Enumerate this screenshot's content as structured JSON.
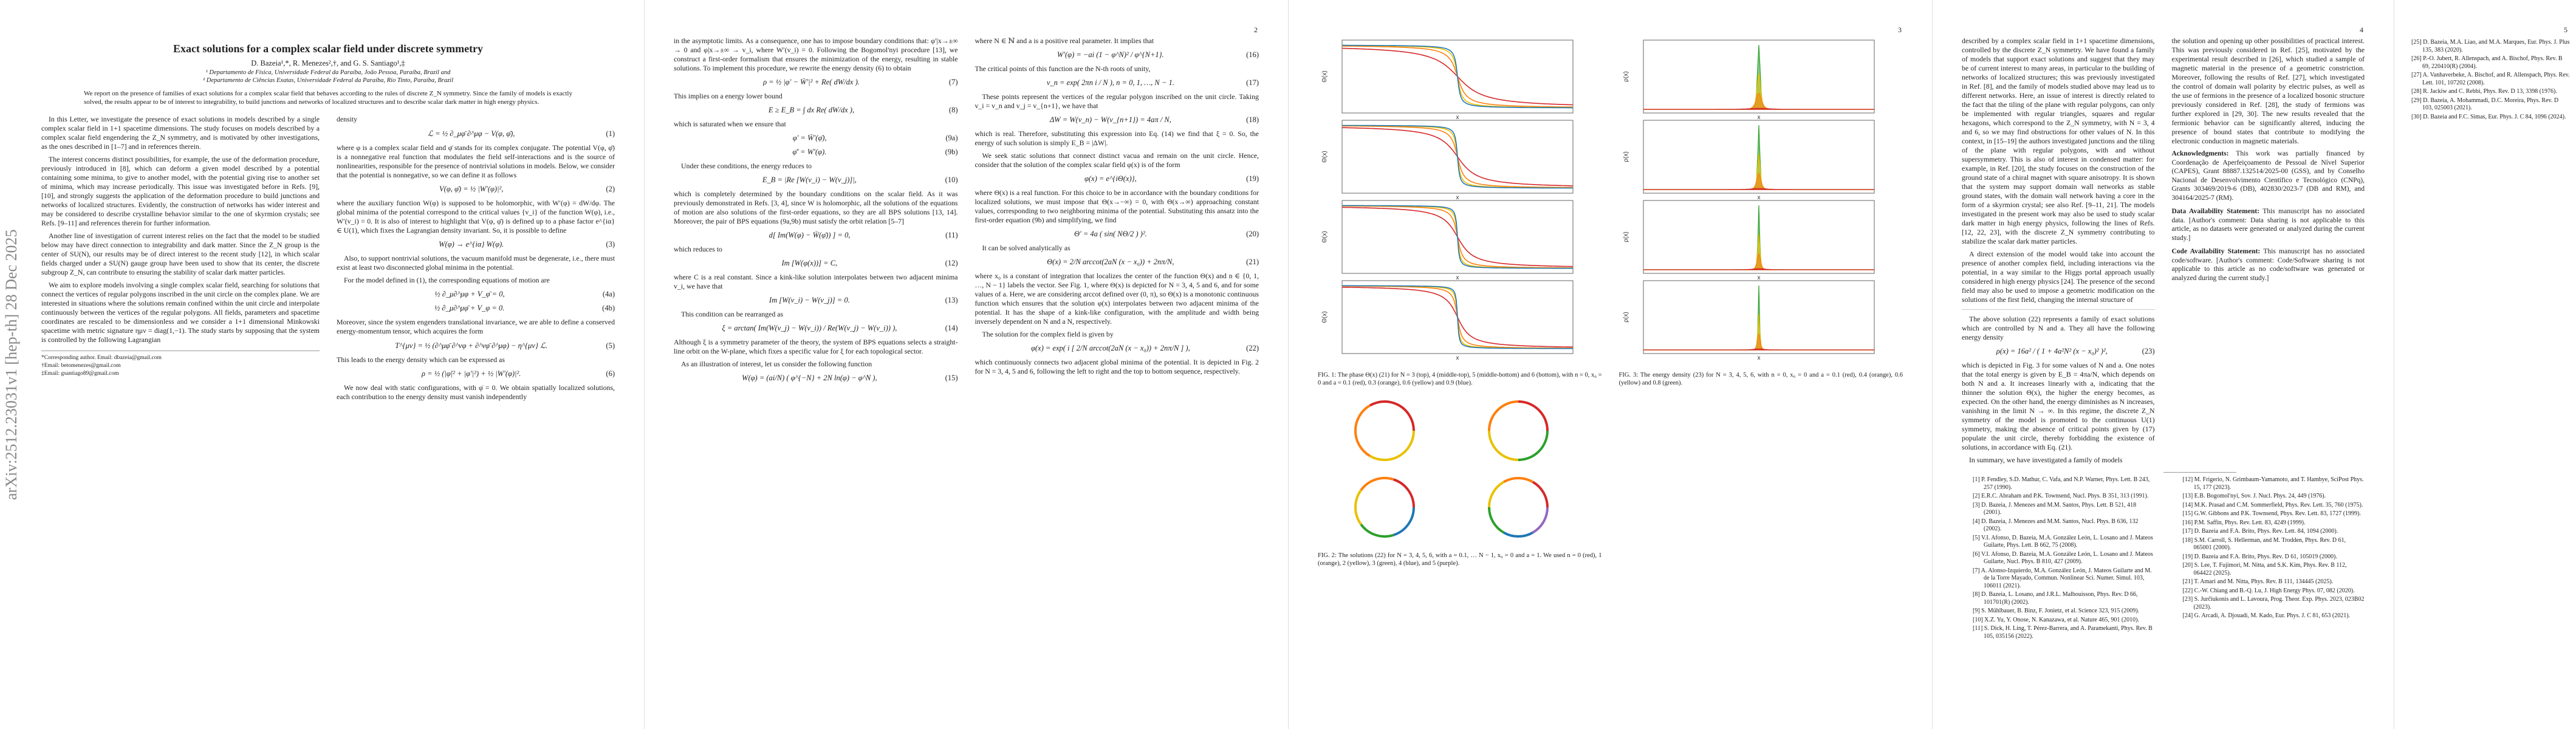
{
  "arxiv_id": "arXiv:2512.23031v1  [hep-th]  28 Dec 2025",
  "page1": {
    "title": "Exact solutions for a complex scalar field under discrete symmetry",
    "authors": "D. Bazeia¹,*, R. Menezes²,†, and G. S. Santiago¹,‡",
    "affil1": "¹ Departamento de Física, Universidade Federal da Paraíba, João Pessoa, Paraíba, Brazil and",
    "affil2": "² Departamento de Ciências Exatas, Universidade Federal da Paraíba, Rio Tinto, Paraíba, Brazil",
    "abstract": "We report on the presence of families of exact solutions for a complex scalar field that behaves according to the rules of discrete Z_N symmetry. Since the family of models is exactly solved, the results appear to be of interest to integrability, to build junctions and networks of localized structures and to describe scalar dark matter in high energy physics.",
    "left_paragraphs": [
      "In this Letter, we investigate the presence of exact solutions in models described by a single complex scalar field in 1+1 spacetime dimensions. The study focuses on models described by a complex scalar field engendering the Z_N symmetry, and is motivated by other investigations, as the ones described in [1–7] and in references therein.",
      "The interest concerns distinct possibilities, for example, the use of the deformation procedure, previously introduced in [8], which can deform a given model described by a potential containing some minima, to give to another model, with the potential giving rise to another set of minima, which may increase periodically. This issue was investigated before in Refs. [9], [10], and strongly suggests the application of the deformation procedure to build junctions and networks of localized structures. Evidently, the construction of networks has wider interest and may be considered to describe crystalline behavior similar to the one of skyrmion crystals; see Refs. [9–11] and references therein for further information.",
      "Another line of investigation of current interest relies on the fact that the model to be studied below may have direct connection to integrability and dark matter. Since the Z_N group is the center of SU(N), our results may be of direct interest to the recent study [12], in which scalar fields charged under a SU(N) gauge group have been used to show that its center, the discrete subgroup Z_N, can contribute to ensuring the stability of scalar dark matter particles.",
      "We aim to explore models involving a single complex scalar field, searching for solutions that connect the vertices of regular polygons inscribed in the unit circle on the complex plane. We are interested in situations where the solutions remain confined within the unit circle and interpolate continuously between the vertices of the regular polygons. All fields, parameters and spacetime coordinates are rescaled to be dimensionless and we consider a 1+1 dimensional Minkowski spacetime with metric signature ημν = diag(1,−1). The study starts by supposing that the system is controlled by the following Lagrangian"
    ],
    "footnotes": [
      "*Corresponding author. Email: dbazeia@gmail.com",
      "†Email: betomenezes@gmail.com",
      "‡Email: gsantiago89@gmail.com"
    ],
    "right_top": "density",
    "eq1": "ℒ = ½ ∂_μφ̄ ∂^μφ − V(φ, φ̄),",
    "right_paragraphs_a": [
      "where φ is a complex scalar field and φ̄ stands for its complex conjugate. The potential V(φ, φ̄) is a nonnegative real function that modulates the field self-interactions and is the source of nonlinearities, responsible for the presence of nontrivial solutions in models. Below, we consider that the potential is nonnegative, so we can define it as follows"
    ],
    "eq2": "V(φ, φ̄) = ½ |W′(φ)|²,",
    "right_paragraphs_b": [
      "where the auxiliary function W(φ) is supposed to be holomorphic, with W′(φ) = dW/dφ. The global minima of the potential correspond to the critical values {v_i} of the function W(φ), i.e., W′(v_i) = 0. It is also of interest to highlight that V(φ, φ̄) is defined up to a phase factor e^{iα} ∈ U(1), which fixes the Lagrangian density invariant. So, it is possible to define"
    ],
    "eq3": "W(φ) → e^{iα} W(φ).",
    "right_paragraphs_c": [
      "Also, to support nontrivial solutions, the vacuum manifold must be degenerate, i.e., there must exist at least two disconnected global minima in the potential.",
      "For the model defined in (1), the corresponding equations of motion are"
    ],
    "eq4a": "½ ∂_μ∂^μφ + V_φ̄ = 0,",
    "eq4b": "½ ∂_μ∂^μφ̄ + V_φ = 0.",
    "right_paragraphs_d": [
      "Moreover, since the system engenders translational invariance, we are able to define a conserved energy-momentum tensor, which acquires the form"
    ],
    "eq5": "T^{μν} = ½ (∂^μφ̄ ∂^νφ + ∂^νφ̄ ∂^μφ) − η^{μν} ℒ.",
    "right_paragraphs_e": [
      "This leads to the energy density which can be expressed as"
    ],
    "eq6": "ρ = ½ (|φ̇|² + |φ′|²) + ½ |W′(φ)|².",
    "right_paragraphs_f": [
      "We now deal with static configurations, with φ̇ = 0. We obtain spatially localized solutions, each contribution to the energy density must vanish independently"
    ]
  },
  "page2": {
    "page_number": "2",
    "left_paragraphs_a": [
      "in the asymptotic limits. As a consequence, one has to impose boundary conditions that: φ′|x→±∞ → 0 and φ|x→±∞ → v_i, where W′(v_i) = 0. Following the Bogomol'nyi procedure [13], we construct a first-order formalism that ensures the minimization of the energy, resulting in stable solutions. To implement this procedure, we rewrite the energy density (6) to obtain"
    ],
    "eq7": "ρ = ½ |φ′ − W̄′|² + Re( dW/dx ).",
    "left_paragraphs_b": [
      "This implies on a energy lower bound"
    ],
    "eq8": "E ≥ E_B = ∫ dx Re( dW/dx ),",
    "left_paragraphs_c": [
      "which is saturated when we ensure that"
    ],
    "eq9a": "φ′ = W̄′(φ̄),",
    "eq9b": "φ̄′ = W′(φ).",
    "left_paragraphs_d": [
      "Under these conditions, the energy reduces to"
    ],
    "eq10": "E_B = |Re [W(v_i) − W(v_j)]|,",
    "left_paragraphs_e": [
      "which is completely determined by the boundary conditions on the scalar field. As it was previously demonstrated in Refs. [3, 4], since W is holomorphic, all the solutions of the equations of motion are also solutions of the first-order equations, so they are all BPS solutions [13, 14]. Moreover, the pair of BPS equations (9a,9b) must satisfy the orbit relation [5–7]"
    ],
    "eq11": "d[ Im(W(φ) − W̄(φ̄)) ] = 0,",
    "left_paragraphs_f": [
      "which reduces to"
    ],
    "eq12": "Im [W(φ(x))] = C,",
    "left_paragraphs_g": [
      "where C is a real constant. Since a kink-like solution interpolates between two adjacent minima v_i, we have that"
    ],
    "eq13": "Im [W(v_i) − W(v_j)] = 0.",
    "left_paragraphs_h": [
      "This condition can be rearranged as"
    ],
    "eq14": "ξ = arctan( Im(W(v_j) − W(v_i)) / Re(W(v_j) − W(v_i)) ),",
    "left_paragraphs_i": [
      "Although ξ is a symmetry parameter of the theory, the system of BPS equations selects a straight-line orbit on the W-plane, which fixes a specific value for ξ for each topological sector.",
      "As an illustration of interest, let us consider the following function"
    ],
    "eq15": "W(φ) = (ai/N) ( φ^{−N} + 2N ln(φ) − φ^N ),",
    "right_paragraphs_a": [
      "where N ∈ ℕ and a is a positive real parameter. It implies that"
    ],
    "eq16": "W′(φ) = −ai (1 − φ^N)² / φ^{N+1}.",
    "right_paragraphs_b": [
      "The critical points of this function are the N-th roots of unity,"
    ],
    "eq17": "v_n = exp( 2πn i / N ),    n = 0, 1, …, N − 1.",
    "right_paragraphs_c": [
      "These points represent the vertices of the regular polygon inscribed on the unit circle. Taking v_i = v_n and v_j = v_{n+1}, we have that"
    ],
    "eq18": "ΔW = W(v_n) − W(v_{n+1}) = 4aπ / N,",
    "right_paragraphs_d": [
      "which is real. Therefore, substituting this expression into Eq. (14) we find that ξ = 0. So, the energy of such solution is simply E_B = |ΔW|.",
      "We seek static solutions that connect distinct vacua and remain on the unit circle. Hence, consider that the solution of the complex scalar field φ(x) is of the form"
    ],
    "eq19": "φ(x) = e^{iΘ(x)},",
    "right_paragraphs_e": [
      "where Θ(x) is a real function. For this choice to be in accordance with the boundary conditions for localized solutions, we must impose that Θ(x→−∞) = 0, with Θ(x→∞) approaching constant values, corresponding to two neighboring minima of the potential. Substituting this ansatz into the first-order equation (9b) and simplifying, we find"
    ],
    "eq20": "Θ′ = 4a ( sin( NΘ/2 ) )².",
    "right_paragraphs_f": [
      "It can be solved analytically as"
    ],
    "eq21": "Θ(x) = 2/N arccot(2aN (x − x₀)) + 2nπ/N,",
    "right_paragraphs_g": [
      "where x₀ is a constant of integration that localizes the center of the function Θ(x) and n ∈ {0, 1, …, N − 1} labels the vector. See Fig. 1, where Θ(x) is depicted for N = 3, 4, 5 and 6, and for some values of a. Here, we are considering arccot defined over (0, π), so Θ(x) is a monotonic continuous function which ensures that the solution φ(x) interpolates between two adjacent minima of the potential. It has the shape of a kink-like configuration, with the amplitude and width being inversely dependent on N and a N, respectively.",
      "The solution for the complex field is given by"
    ],
    "eq22": "φ(x) = exp( i [ 2/N arccot(2aN (x − x₀)) + 2nπ/N ] ),",
    "right_paragraphs_h": [
      "which continuously connects two adjacent global minima of the potential. It is depicted in Fig. 2 for N = 3, 4, 5 and 6, following the left to right and the top to bottom sequence, respectively."
    ]
  },
  "page3": {
    "page_number": "3",
    "fig1_caption": "FIG. 1: The phase Θ(x) (21) for N = 3 (top), 4 (middle-top), 5 (middle-bottom) and 6 (bottom), with n = 0, x₀ = 0 and a = 0.1 (red), 0.3 (orange), 0.6 (yellow) and 0.9 (blue).",
    "fig2_caption": "FIG. 2: The solutions (22) for N = 3, 4, 5, 6, with a = 0.1, … N − 1, x₀ = 0 and a = 1. We used n = 0 (red), 1 (orange), 2 (yellow), 3 (green), 4 (blue), and 5 (purple).",
    "fig3_caption": "FIG. 3: The energy density (23) for N = 3, 4, 5, 6, with n = 0, x₀ = 0 and a = 0.1 (red), 0.4 (orange), 0.6 (yellow) and 0.8 (green).",
    "axis_x": "x",
    "axis_theta": "Θ(x)",
    "axis_rho": "ρ(x)"
  },
  "page4": {
    "page_number": "4",
    "left_paragraphs_a": [
      "described by a complex scalar field in 1+1 spacetime dimensions, controlled by the discrete Z_N symmetry. We have found a family of models that support exact solutions and suggest that they may be of current interest to many areas, in particular to the building of networks of localized structures; this was previously investigated in Ref. [8], and the family of models studied above may lead us to different networks. Here, an issue of interest is directly related to the fact that the tiling of the plane with regular polygons, can only be implemented with regular triangles, squares and regular hexagons, which correspond to the Z_N symmetry, with N = 3, 4 and 6, so we may find obstructions for other values of N. In this context, in [15–19] the authors investigated junctions and the tiling of the plane with regular polygons, with and without supersymmetry. This is also of interest in condensed matter: for example, in Ref. [20], the study focuses on the construction of the ground state of a chiral magnet with square anisotropy. It is shown that the system may support domain wall networks as stable ground states, with the domain wall network having a core in the form of a skyrmion crystal; see also Ref. [9–11, 21]. The models investigated in the present work may also be used to study scalar dark matter in high energy physics, following the lines of Refs. [12, 22, 23], with the discrete Z_N symmetry contributing to stabilize the scalar dark matter particles.",
      "A direct extension of the model would take into account the presence of another complex field, including interactions via the potential, in a way similar to the Higgs portal approach usually considered in high energy physics [24]. The presence of the second field may also be used to impose a geometric modification on the solutions of the first field, changing the internal structure of"
    ],
    "left_paragraphs_b": [
      "The above solution (22) represents a family of exact solutions which are controlled by N and a. They all have the following energy density"
    ],
    "eq23": "ρ(x) = 16a² / ( 1 + 4a²N² (x − x₀)² )²,",
    "left_paragraphs_c": [
      "which is depicted in Fig. 3 for some values of N and a. One notes that the total energy is given by E_B = 4πa/N, which depends on both N and a. It increases linearly with a, indicating that the thinner the solution Θ(x), the higher the energy becomes, as expected. On the other hand, the energy diminishes as N increases, vanishing in the limit N → ∞. In this regime, the discrete Z_N symmetry of the model is promoted to the continuous U(1) symmetry, making the absence of critical points given by (17) populate the unit circle, thereby forbidding the existence of solutions, in accordance with Eq. (21).",
      "In summary, we have investigated a family of models"
    ],
    "mid_paragraphs": [
      "the solution and opening up other possibilities of practical interest. This was previously considered in Ref. [25], motivated by the experimental result described in [26], which studied a sample of magnetic material in the presence of a geometric constriction. Moreover, following the results of Ref. [27], which investigated the control of domain wall polarity by electric pulses, as well as the use of fermions in the presence of a localized bosonic structure previously considered in Ref. [28], the study of fermions was further explored in [29, 30]. The new results revealed that the fermionic behavior can be significantly altered, inducing the presence of bound states that contribute to modifying the electronic conduction in magnetic materials."
    ],
    "ack_title": "Acknowledgments:",
    "ack_text": "This work was partially financed by Coordenação de Aperfeiçoamento de Pessoal de Nível Superior (CAPES), Grant 88887.132514/2025-00 (GSS), and by Conselho Nacional de Desenvolvimento Científico e Tecnológico (CNPq), Grants 303469/2019-6 (DB), 402830/2023-7 (DB and RM), and 304164/2025-7 (RM).",
    "data_title": "Data Availability Statement:",
    "data_text": "This manuscript has no associated data. [Author's comment: Data sharing is not applicable to this article, as no datasets were generated or analyzed during the current study.]",
    "code_title": "Code Availability Statement:",
    "code_text": "This manuscript has no associated code/software. [Author's comment: Code/Software sharing is not applicable to this article as no code/software was generated or analyzed during the current study.]",
    "refs_left": [
      "[1] P. Fendley, S.D. Mathur, C. Vafa, and N.P. Warner, Phys. Lett. B 243, 257 (1990).",
      "[2] E.R.C. Abraham and P.K. Townsend, Nucl. Phys. B 351, 313 (1991).",
      "[3] D. Bazeia, J. Menezes and M.M. Santos, Phys. Lett. B 521, 418 (2001).",
      "[4] D. Bazeia, J. Menezes and M.M. Santos, Nucl. Phys. B 636, 132 (2002).",
      "[5] V.I. Afonso, D. Bazeia, M.A. González León, L. Losano and J. Mateos Guilarte, Phys. Lett. B 662, 75 (2008).",
      "[6] V.I. Afonso, D. Bazeia, M.A. González León, L. Losano and J. Mateos Guilarte, Nucl. Phys. B 810, 427 (2009).",
      "[7] A. Alonso-Izquierdo, M.A. González León, J. Mateos Guilarte and M. de la Torre Mayado, Commun. Nonlinear Sci. Numer. Simul. 103, 106011 (2021).",
      "[8] D. Bazeia, L. Losano, and J.R.L. Malbouisson, Phys. Rev. D 66, 101701(R) (2002).",
      "[9] S. Mühlbauer, B. Binz, F. Jonietz, et al. Science 323, 915 (2009).",
      "[10] X.Z. Yu, Y. Onose, N. Kanazawa, et al. Nature 465, 901 (2010).",
      "[11] S. Dick, H. Ling, T. Pérez-Barrera, and A. Paramekanti, Phys. Rev. B 105, 035156 (2022)."
    ],
    "refs_right": [
      "[12] M. Frigerio, N. Grimbaum-Yamamoto, and T. Hambye, SciPost Phys. 15, 177 (2023).",
      "[13] E.B. Bogomol'nyi, Sov. J. Nucl. Phys. 24, 449 (1976).",
      "[14] M.K. Prasad and C.M. Sommerfield, Phys. Rev. Lett. 35, 760 (1975).",
      "[15] G.W. Gibbons and P.K. Townsend, Phys. Rev. Lett. 83, 1727 (1999).",
      "[16] P.M. Saffin, Phys. Rev. Lett. 83, 4249 (1999).",
      "[17] D. Bazeia and F.A. Brito, Phys. Rev. Lett. 84, 1094 (2000).",
      "[18] S.M. Carroll, S. Hellerman, and M. Trodden, Phys. Rev. D 61, 065001 (2000).",
      "[19] D. Bazeia and F.A. Brito, Phys. Rev. D 61, 105019 (2000).",
      "[20] S. Lee, T. Fujimori, M. Nitta, and S.K. Kim, Phys. Rev. B 112, 064422 (2025).",
      "[21] T. Amari and M. Nitta, Phys. Rev. B 111, 134445 (2025).",
      "[22] C.-W. Chiang and B.-Q. Lu, J. High Energy Phys. 07, 082 (2020).",
      "[23] S. Jurčiukonis and L. Lavoura, Prog. Theor. Exp. Phys. 2023, 023B02 (2023).",
      "[24] G. Arcadi, A. Djouadi, M. Kado, Eur. Phys. J. C 81, 653 (2021)."
    ]
  },
  "page5": {
    "page_number": "5",
    "refs_left": [
      "[25] D. Bazeia, M.A. Liao, and M.A. Marques, Eur. Phys. J. Plus 135, 383 (2020).",
      "[26] P.-O. Jubert, R. Allenspach, and A. Bischof, Phys. Rev. B 69, 220410(R) (2004).",
      "[27] A. Vanhaverbeke, A. Bischof, and R. Allenspach, Phys. Rev. Lett. 101, 107202 (2008)."
    ],
    "refs_right": [
      "[28] R. Jackiw and C. Rebbi, Phys. Rev. D 13, 3398 (1976).",
      "[29] D. Bazeia, A. Mohammadi, D.C. Moreira, Phys. Rev. D 103, 025003 (2021).",
      "[30] D. Bazeia and F.C. Simas, Eur. Phys. J. C 84, 1096 (2024)."
    ]
  },
  "chart_data": [
    {
      "type": "line",
      "title": "",
      "xlabel": "x",
      "ylabel": "Θ(x)",
      "xlim": [
        -10,
        10
      ],
      "series": [
        {
          "name": "a = 0.1",
          "N": 3,
          "a": 0.1
        },
        {
          "name": "a = 0.3",
          "N": 3,
          "a": 0.3
        },
        {
          "name": "a = 0.6",
          "N": 3,
          "a": 0.6
        },
        {
          "name": "a = 0.9",
          "N": 3,
          "a": 0.9
        }
      ],
      "panels_N": [
        3,
        4,
        5,
        6
      ],
      "series_a": [
        0.1,
        0.3,
        0.6,
        0.9
      ],
      "series_colors": [
        "#d62728",
        "#ff7f0e",
        "#e8c100",
        "#1f77b4"
      ]
    },
    {
      "type": "line",
      "title": "",
      "xlabel": "x",
      "ylabel": "ρ(x)",
      "xlim": [
        -10,
        10
      ],
      "panels_N": [
        3,
        4,
        5,
        6
      ],
      "series_a": [
        0.1,
        0.4,
        0.6,
        0.8
      ],
      "series_colors": [
        "#d62728",
        "#ff7f0e",
        "#e8c100",
        "#2ca02c"
      ]
    },
    {
      "type": "scatter",
      "title": "",
      "panels_N": [
        3,
        4,
        5,
        6
      ],
      "arc_colors": [
        "#d62728",
        "#ff7f0e",
        "#e8c100",
        "#2ca02c",
        "#1f77b4",
        "#9467bd"
      ]
    }
  ]
}
